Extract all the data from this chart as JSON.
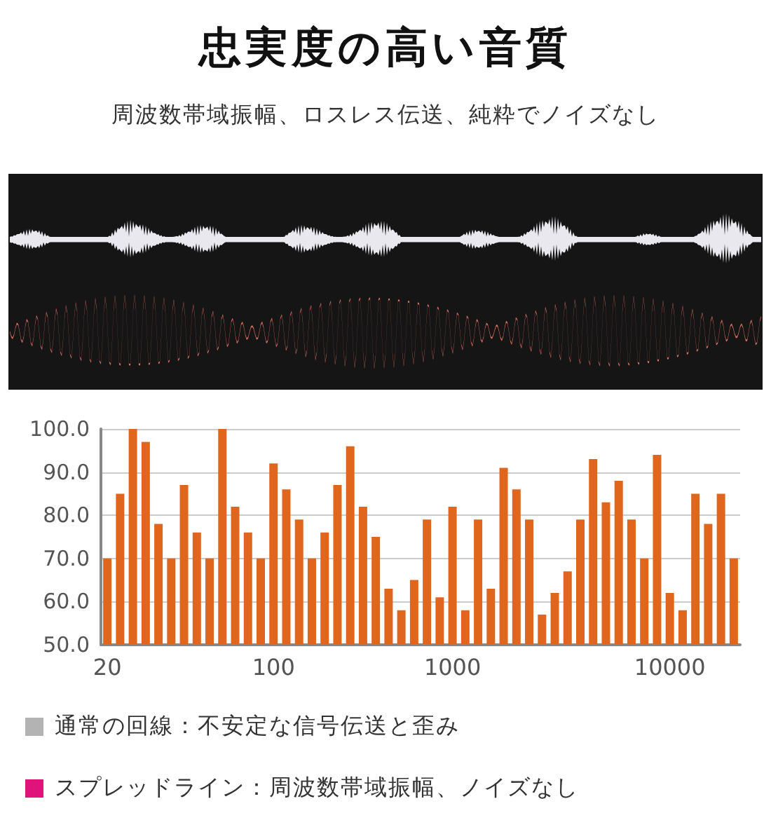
{
  "chart_data": {
    "type": "bar",
    "title": "忠実度の高い音質",
    "subtitle": "周波数帯域振幅、ロスレス伝送、純粋でノイズなし",
    "categories": [
      "20",
      null,
      null,
      null,
      null,
      null,
      null,
      null,
      null,
      null,
      null,
      null,
      null,
      "100",
      null,
      null,
      null,
      null,
      null,
      null,
      null,
      null,
      null,
      null,
      null,
      null,
      null,
      "1000",
      null,
      null,
      null,
      null,
      null,
      null,
      null,
      null,
      null,
      null,
      null,
      null,
      null,
      null,
      null,
      null,
      "10000",
      null,
      null,
      null,
      null,
      null
    ],
    "values": [
      70,
      85,
      100,
      97,
      78,
      70,
      87,
      76,
      70,
      100,
      82,
      76,
      70,
      92,
      86,
      79,
      70,
      76,
      87,
      96,
      82,
      75,
      63,
      58,
      65,
      79,
      61,
      82,
      58,
      79,
      63,
      91,
      86,
      79,
      57,
      62,
      67,
      79,
      93,
      83,
      88,
      79,
      70,
      94,
      62,
      58,
      85,
      78,
      85,
      70
    ],
    "color": "#e0661e",
    "ylim": [
      50,
      100
    ],
    "yticks": [
      {
        "value": 50,
        "label": "50.0"
      },
      {
        "value": 60,
        "label": "60.0"
      },
      {
        "value": 70,
        "label": "70.0"
      },
      {
        "value": 80,
        "label": "80.0"
      },
      {
        "value": 90,
        "label": "90.0"
      },
      {
        "value": 100,
        "label": "100.0"
      }
    ],
    "grid": "y",
    "annotations": [
      "通常の回線：不安定な信号伝送と歪み",
      "スプレッドライン：周波数帯域振幅、ノイズなし"
    ]
  }
}
